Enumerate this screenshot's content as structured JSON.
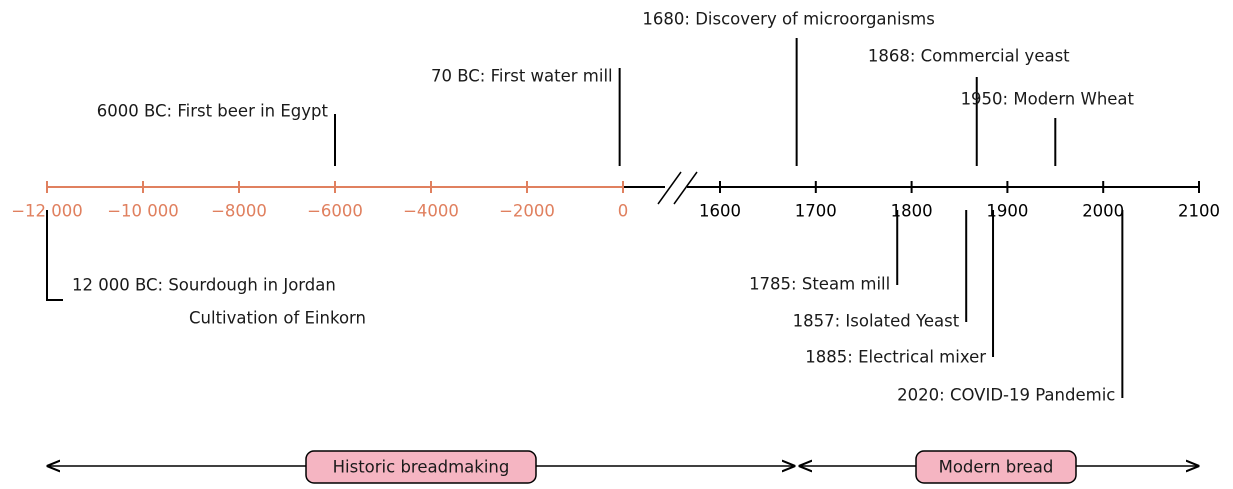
{
  "axes": [
    {
      "color": "#e0805f",
      "range": [
        -12000,
        0
      ],
      "ticks": [
        {
          "value": -12000,
          "label": "−12 000"
        },
        {
          "value": -10000,
          "label": "−10 000"
        },
        {
          "value": -8000,
          "label": "−8000"
        },
        {
          "value": -6000,
          "label": "−6000"
        },
        {
          "value": -4000,
          "label": "−4000"
        },
        {
          "value": -2000,
          "label": "−2000"
        },
        0
      ]
    },
    {
      "color": "#000000",
      "range": [
        1600,
        2100
      ],
      "ticks": [
        1600,
        1700,
        1800,
        1900,
        2000,
        2100
      ]
    }
  ],
  "events_above": [
    {
      "year": -6000,
      "lines": [
        "6000 BC: First beer in Egypt"
      ]
    },
    {
      "year": -70,
      "lines": [
        "70 BC: First water mill"
      ]
    },
    {
      "year": 1680,
      "lines": [
        "1680: Discovery of microorganisms"
      ]
    },
    {
      "year": 1868,
      "lines": [
        "1868: Commercial yeast"
      ]
    },
    {
      "year": 1950,
      "lines": [
        "1950: Modern Wheat"
      ]
    }
  ],
  "events_below": [
    {
      "year": -12000,
      "lines": [
        "12 000 BC: Sourdough in Jordan",
        "Cultivation of Einkorn"
      ]
    },
    {
      "year": 1785,
      "lines": [
        "1785: Steam mill"
      ]
    },
    {
      "year": 1857,
      "lines": [
        "1857: Isolated Yeast"
      ]
    },
    {
      "year": 1885,
      "lines": [
        "1885: Electrical mixer"
      ]
    },
    {
      "year": 2020,
      "lines": [
        "2020: COVID-19 Pandemic"
      ]
    }
  ],
  "periods": [
    "Historic breadmaking",
    "Modern bread"
  ]
}
